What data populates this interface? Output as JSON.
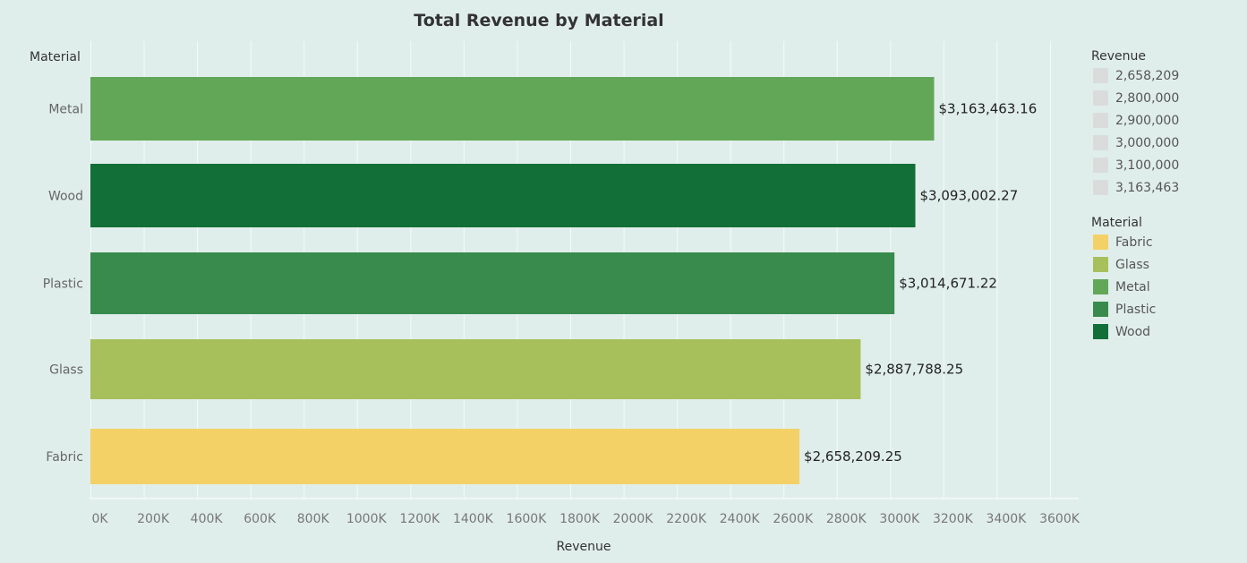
{
  "chart_data": {
    "type": "bar",
    "orientation": "horizontal",
    "title": "Total Revenue by Material",
    "xlabel": "Revenue",
    "ylabel": "Material",
    "xlim": [
      0,
      3700000
    ],
    "xticks": [
      0,
      200000,
      400000,
      600000,
      800000,
      1000000,
      1200000,
      1400000,
      1600000,
      1800000,
      2000000,
      2200000,
      2400000,
      2600000,
      2800000,
      3000000,
      3200000,
      3400000,
      3600000
    ],
    "xtick_labels": [
      "0K",
      "200K",
      "400K",
      "600K",
      "800K",
      "1000K",
      "1200K",
      "1400K",
      "1600K",
      "1800K",
      "2000K",
      "2200K",
      "2400K",
      "2600K",
      "2800K",
      "3000K",
      "3200K",
      "3400K",
      "3600K"
    ],
    "grid": true,
    "categories": [
      "Metal",
      "Wood",
      "Plastic",
      "Glass",
      "Fabric"
    ],
    "values": [
      3163463.16,
      3093002.27,
      3014671.22,
      2887788.25,
      2658209.25
    ],
    "data_labels": [
      "$3,163,463.16",
      "$3,093,002.27",
      "$3,014,671.22",
      "$2,887,788.25",
      "$2,658,209.25"
    ],
    "bar_colors": [
      "#62a757",
      "#136f38",
      "#398b4d",
      "#a7c05c",
      "#f3d167"
    ],
    "legend_placement": "right",
    "legends": [
      {
        "title": "Revenue",
        "items": [
          {
            "label": "2,658,209",
            "color": "#dadcdc"
          },
          {
            "label": "2,800,000",
            "color": "#dadcdc"
          },
          {
            "label": "2,900,000",
            "color": "#dadcdc"
          },
          {
            "label": "3,000,000",
            "color": "#dadcdc"
          },
          {
            "label": "3,100,000",
            "color": "#dadcdc"
          },
          {
            "label": "3,163,463",
            "color": "#dadcdc"
          }
        ]
      },
      {
        "title": "Material",
        "items": [
          {
            "label": "Fabric",
            "color": "#f3d167"
          },
          {
            "label": "Glass",
            "color": "#a7c05c"
          },
          {
            "label": "Metal",
            "color": "#62a757"
          },
          {
            "label": "Plastic",
            "color": "#398b4d"
          },
          {
            "label": "Wood",
            "color": "#136f38"
          }
        ]
      }
    ]
  }
}
